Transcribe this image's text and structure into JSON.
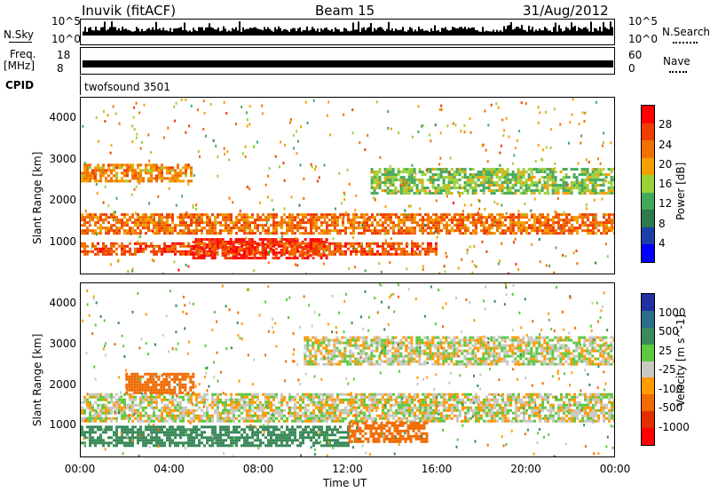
{
  "header": {
    "station": "Inuvik (fitACF)",
    "beam": "Beam 15",
    "date": "31/Aug/2012"
  },
  "top_panels": {
    "nsky_label": "N.Sky",
    "nsky_ticks": [
      "10^5",
      "10^0"
    ],
    "nsearch_label": "N.Search",
    "freq_label": "Freq.",
    "freq_unit": "[MHz]",
    "freq_ticks": [
      "18",
      "8"
    ],
    "nave_label": "Nave",
    "nave_ticks": [
      "60",
      "0"
    ],
    "cpid_label": "CPID",
    "cpid_value": "twofsound 3501"
  },
  "colors": {
    "power": [
      "#0000ff",
      "#1a3fa8",
      "#2e7a4e",
      "#44a85a",
      "#9ad13a",
      "#f2a000",
      "#f07000",
      "#f03c00",
      "#ff0000"
    ],
    "velocity": [
      "#2030a0",
      "#2e6c8c",
      "#3a8a5a",
      "#5cc840",
      "#c8c8c0",
      "#ff9a00",
      "#f06a00",
      "#e03000",
      "#ff0000"
    ]
  },
  "chart_data": [
    {
      "type": "heatmap",
      "panel": "power",
      "ylabel": "Slant Range [km]",
      "xlabel": "Time UT",
      "x_ticks": [
        "00:00",
        "04:00",
        "08:00",
        "12:00",
        "16:00",
        "20:00",
        "00:00"
      ],
      "y_ticks": [
        "1000",
        "2000",
        "3000",
        "4000"
      ],
      "ylim": [
        200,
        4500
      ],
      "colorbar_label": "Power [dB]",
      "colorbar_ticks": [
        "4",
        "8",
        "12",
        "16",
        "20",
        "24",
        "28"
      ],
      "clim": [
        0,
        30
      ],
      "bands": [
        {
          "t0": 0.0,
          "t1": 24.0,
          "r0": 1200,
          "r1": 1700,
          "level": 22
        },
        {
          "t0": 5.0,
          "t1": 11.0,
          "r0": 600,
          "r1": 1100,
          "level": 28
        },
        {
          "t0": 0.0,
          "t1": 16.0,
          "r0": 700,
          "r1": 1000,
          "level": 24
        },
        {
          "t0": 0.0,
          "t1": 5.0,
          "r0": 2500,
          "r1": 2900,
          "level": 20
        },
        {
          "t0": 13.0,
          "t1": 24.0,
          "r0": 2200,
          "r1": 2800,
          "level": 14
        }
      ]
    },
    {
      "type": "heatmap",
      "panel": "velocity",
      "ylabel": "Slant Range [km]",
      "xlabel": "Time UT",
      "x_ticks": [
        "00:00",
        "04:00",
        "08:00",
        "12:00",
        "16:00",
        "20:00",
        "00:00"
      ],
      "y_ticks": [
        "1000",
        "2000",
        "3000",
        "4000"
      ],
      "ylim": [
        200,
        4500
      ],
      "colorbar_label": "Velocity [m s^-1]",
      "colorbar_ticks": [
        "1000",
        "500",
        "25",
        "-25",
        "-100",
        "-500",
        "-1000"
      ],
      "bands": [
        {
          "t0": 0.0,
          "t1": 24.0,
          "r0": 1100,
          "r1": 1800,
          "velocity": 0
        },
        {
          "t0": 0.0,
          "t1": 12.0,
          "r0": 500,
          "r1": 1000,
          "velocity": 200
        },
        {
          "t0": 12.0,
          "t1": 15.5,
          "r0": 600,
          "r1": 1100,
          "velocity": -200
        },
        {
          "t0": 2.0,
          "t1": 5.0,
          "r0": 1800,
          "r1": 2300,
          "velocity": -200
        },
        {
          "t0": 10.0,
          "t1": 24.0,
          "r0": 2500,
          "r1": 3200,
          "velocity": 0
        }
      ]
    }
  ]
}
